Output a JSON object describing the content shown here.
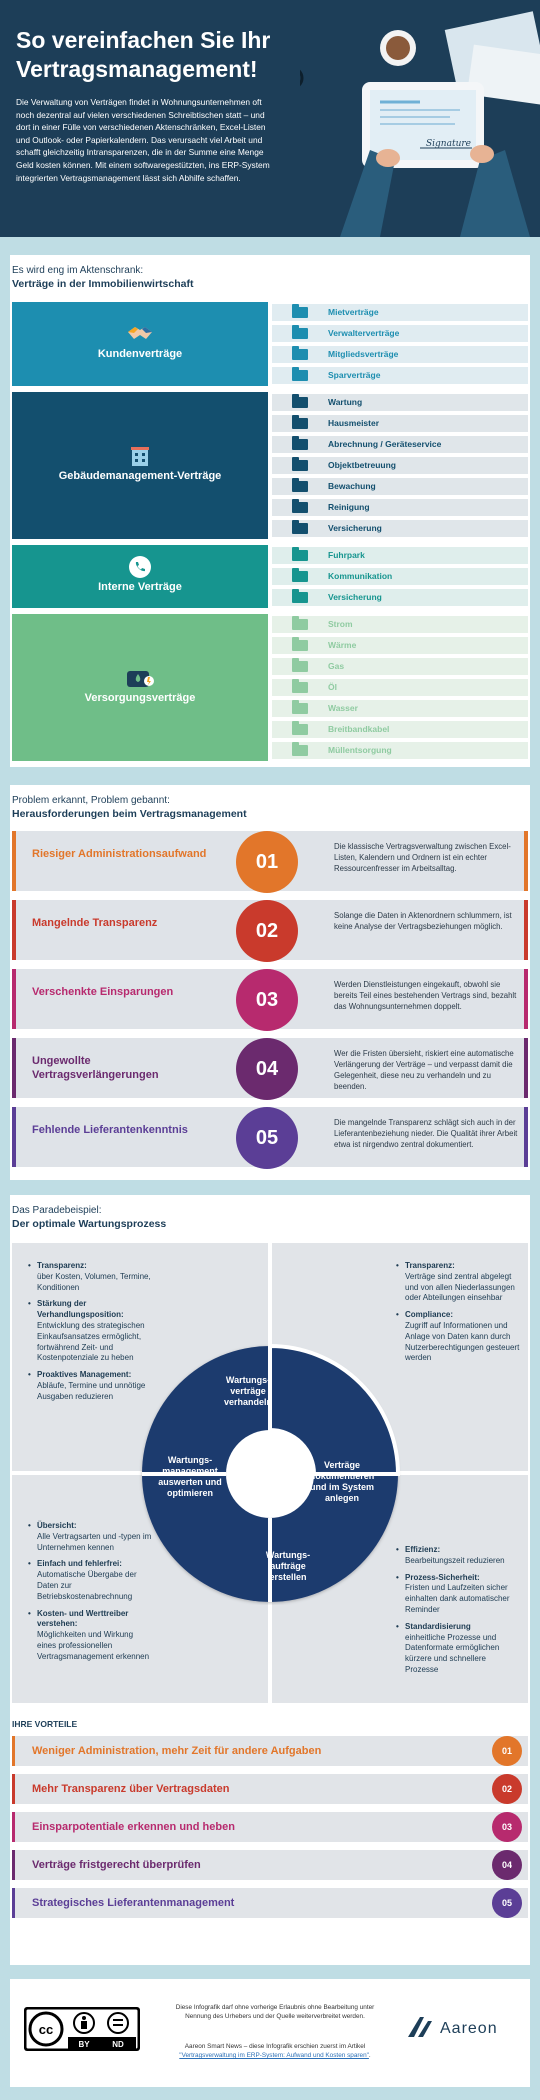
{
  "header": {
    "title": "So vereinfachen Sie Ihr Vertragsmanagement!",
    "intro": "Die Verwaltung von Verträgen findet in Wohnungsunternehmen oft noch dezentral auf vielen verschiedenen Schreibtischen statt – und dort in einer Fülle von verschiedenen Aktenschränken, Excel-Listen und Outlook- oder Papierkalendern. Das verursacht viel Arbeit und schafft gleichzeitig Intransparenzen, die in der Summe eine Menge Geld kosten können. Mit einem softwaregestützten, ins ERP-System integrierten Vertragsmanagement lässt sich Abhilfe schaffen.",
    "signature": "Signature"
  },
  "section1": {
    "kicker": "Es wird eng im Aktenschrank:",
    "title": "Verträge in der Immobilienwirtschaft",
    "groups": [
      {
        "label": "Kundenverträge",
        "icon": "handshake-icon",
        "color": "#1d8eb0",
        "rowcolor": "#e0ecf1",
        "textcolor": "#1d8eb0",
        "items": [
          "Mietverträge",
          "Verwalterverträge",
          "Mitgliedsverträge",
          "Sparverträge"
        ]
      },
      {
        "label": "Gebäudemanagement-Verträge",
        "icon": "building-icon",
        "color": "#134f6e",
        "rowcolor": "#e0e6ea",
        "textcolor": "#134f6e",
        "items": [
          "Wartung",
          "Hausmeister",
          "Abrechnung / Geräteservice",
          "Objektbetreuung",
          "Bewachung",
          "Reinigung",
          "Versicherung"
        ]
      },
      {
        "label": "Interne Verträge",
        "icon": "phone-icon",
        "color": "#16958f",
        "rowcolor": "#dfeeec",
        "textcolor": "#16958f",
        "items": [
          "Fuhrpark",
          "Kommunikation",
          "Versicherung"
        ]
      },
      {
        "label": "Versorgungsverträge",
        "icon": "utility-icon",
        "color": "#6fbe88",
        "rowcolor": "#e6f1e8",
        "textcolor": "#8fcba1",
        "items": [
          "Strom",
          "Wärme",
          "Gas",
          "Öl",
          "Wasser",
          "Breitbandkabel",
          "Müllentsorgung"
        ]
      }
    ]
  },
  "section2": {
    "kicker": "Problem erkannt, Problem gebannt:",
    "title": "Herausforderungen beim Vertragsmanagement",
    "items": [
      {
        "title": "Riesiger Administrationsaufwand",
        "num": "01",
        "color": "#e2762a",
        "text": "Die klassische Vertragsverwaltung zwischen Excel-Listen, Kalendern und Ordnern ist ein echter Ressourcenfresser im Arbeitsalltag."
      },
      {
        "title": "Mangelnde Transparenz",
        "num": "02",
        "color": "#c93a2c",
        "text": "Solange die Daten in Aktenordnern schlummern, ist keine Analyse der Vertragsbeziehungen möglich."
      },
      {
        "title": "Verschenkte Einsparungen",
        "num": "03",
        "color": "#b72a6e",
        "text": "Werden Dienstleistungen eingekauft, obwohl sie bereits Teil eines bestehenden Vertrags sind, bezahlt das Wohnungsunternehmen doppelt."
      },
      {
        "title": "Ungewollte Vertragsverlängerungen",
        "num": "04",
        "color": "#6b2a6e",
        "text": "Wer die Fristen übersieht, riskiert eine automatische Verlängerung der Verträge – und verpasst damit die Gelegenheit, diese neu zu verhandeln und zu beenden."
      },
      {
        "title": "Fehlende Lieferantenkenntnis",
        "num": "05",
        "color": "#5b3e96",
        "text": "Die mangelnde Transparenz schlägt sich auch in der Lieferantenbeziehung nieder. Die Qualität ihrer Arbeit etwa ist nirgendwo zentral dokumentiert."
      }
    ]
  },
  "section3": {
    "kicker": "Das Paradebeispiel:",
    "title": "Der optimale Wartungsprozess",
    "cycle": [
      "Wartungsverträge verhandeln",
      "Verträge dokumentieren und im System anlegen",
      "Wartungsaufträge erstellen",
      "Wartungsmanagement auswerten und optimieren"
    ],
    "tl": [
      {
        "h": "Transparenz:",
        "t": "über Kosten, Volumen, Termine, Konditionen"
      },
      {
        "h": "Stärkung der Verhandlungsposition:",
        "t": "Entwicklung des strategischen Einkaufsansatzes ermöglicht, fortwährend Zeit- und Kostenpotenziale zu heben"
      },
      {
        "h": "Proaktives Management:",
        "t": "Abläufe, Termine und unnötige Ausgaben reduzieren"
      }
    ],
    "tr": [
      {
        "h": "Transparenz:",
        "t": "Verträge sind zentral abgelegt und von allen Niederlassungen oder Abteilungen einsehbar"
      },
      {
        "h": "Compliance:",
        "t": "Zugriff auf Informationen und Anlage von Daten kann durch Nutzerberechtigungen gesteuert werden"
      }
    ],
    "bl": [
      {
        "h": "Übersicht:",
        "t": "Alle Vertragsarten und -typen im Unternehmen kennen"
      },
      {
        "h": "Einfach und fehlerfrei:",
        "t": "Automatische Übergabe der Daten zur Betriebskostenabrechnung"
      },
      {
        "h": "Kosten- und Werttreiber verstehen:",
        "t": "Möglichkeiten und Wirkung eines professionellen Vertragsmanagement erkennen"
      }
    ],
    "br": [
      {
        "h": "Effizienz:",
        "t": "Bearbeitungszeit reduzieren"
      },
      {
        "h": "Prozess-Sicherheit:",
        "t": "Fristen und Laufzeiten sicher einhalten dank automatischer Reminder"
      },
      {
        "h": "Standardisierung",
        "t": "einheitliche Prozesse und Datenformate ermöglichen kürzere und schnellere Prozesse"
      }
    ],
    "vorteile_title": "IHRE VORTEILE",
    "vorteile": [
      {
        "t": "Weniger Administration, mehr Zeit für andere Aufgaben",
        "n": "01",
        "color": "#e2762a"
      },
      {
        "t": "Mehr Transparenz über Vertragsdaten",
        "n": "02",
        "color": "#c93a2c"
      },
      {
        "t": "Einsparpotentiale erkennen und heben",
        "n": "03",
        "color": "#b72a6e"
      },
      {
        "t": "Verträge fristgerecht überprüfen",
        "n": "04",
        "color": "#6b2a6e"
      },
      {
        "t": "Strategisches Lieferantenmanagement",
        "n": "05",
        "color": "#5b3e96"
      }
    ]
  },
  "footer": {
    "license_by": "BY",
    "license_nd": "ND",
    "notice": "Diese Infografik darf ohne vorherige Erlaubnis ohne Bearbeitung unter Nennung des Urhebers und der Quelle weiterverbreitet werden.",
    "source_prefix": "Aareon Smart News – diese Infografik erschien zuerst im Artikel",
    "source_link": "\"Vertragsverwaltung im ERP-System: Aufwand und Kosten sparen\"",
    "source_suffix": ".",
    "logo": "Aareon"
  }
}
